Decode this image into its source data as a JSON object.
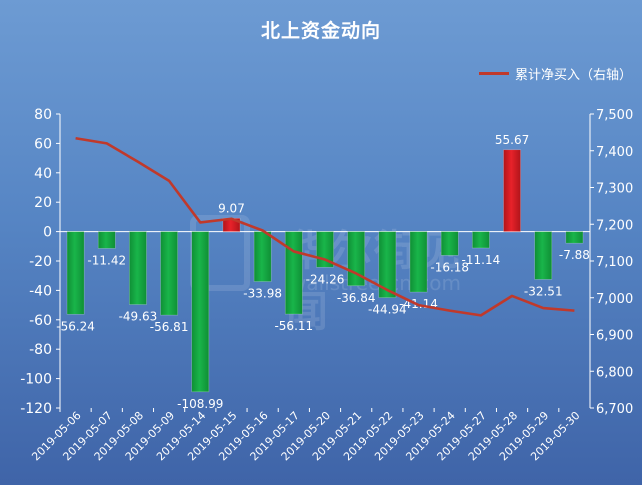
{
  "title": "北上资金动向",
  "legend": {
    "line_label": "累计净买入（右轴）"
  },
  "watermark": {
    "brand": "华尔街见闻",
    "domain": "wallstreetcn.com"
  },
  "colors": {
    "positive_bar": "#e8222a",
    "negative_bar": "#19b54a",
    "line": "#c0392b",
    "text": "#ffffff"
  },
  "chart_data": {
    "type": "bar",
    "title": "北上资金动向",
    "categories": [
      "2019-05-06",
      "2019-05-07",
      "2019-05-08",
      "2019-05-09",
      "2019-05-14",
      "2019-05-15",
      "2019-05-16",
      "2019-05-17",
      "2019-05-20",
      "2019-05-21",
      "2019-05-22",
      "2019-05-23",
      "2019-05-24",
      "2019-05-27",
      "2019-05-28",
      "2019-05-29",
      "2019-05-30"
    ],
    "values": [
      -56.24,
      -11.42,
      -49.63,
      -56.81,
      -108.99,
      9.07,
      -33.98,
      -56.11,
      -24.26,
      -36.84,
      -44.94,
      -41.14,
      -16.18,
      -11.14,
      55.67,
      -32.51,
      -7.88
    ],
    "value_labels": [
      "-56.24",
      "-11.42",
      "-49.63",
      "-56.81",
      "-108.99",
      "9.07",
      "-33.98",
      "-56.11",
      "-24.26",
      "-36.84",
      "-44.94",
      "-41.14",
      "-16.18",
      "-11.14",
      "55.67",
      "-32.51",
      "-7.88"
    ],
    "ylim": [
      -120,
      80
    ],
    "yticks": [
      80,
      60,
      40,
      20,
      0,
      -20,
      -40,
      -60,
      -80,
      -100,
      -120
    ],
    "ytick_labels": [
      "80",
      "60",
      "40",
      "20",
      "0",
      "-20",
      "-40",
      "-60",
      "-80",
      "-100",
      "-120"
    ],
    "secondary_axis": {
      "name": "累计净买入（右轴）",
      "type": "line",
      "ylim": [
        6700,
        7500
      ],
      "yticks": [
        7500,
        7400,
        7300,
        7200,
        7100,
        7000,
        6900,
        6800,
        6700
      ],
      "ytick_labels": [
        "7,500",
        "7,400",
        "7,300",
        "7,200",
        "7,100",
        "7,000",
        "6,900",
        "6,800",
        "6,700"
      ],
      "values": [
        7434,
        7420,
        7370,
        7318,
        7205,
        7215,
        7183,
        7126,
        7104,
        7066,
        7021,
        6980,
        6965,
        6952,
        7005,
        6972,
        6965
      ]
    },
    "grid": false,
    "legend_position": "top-right"
  }
}
